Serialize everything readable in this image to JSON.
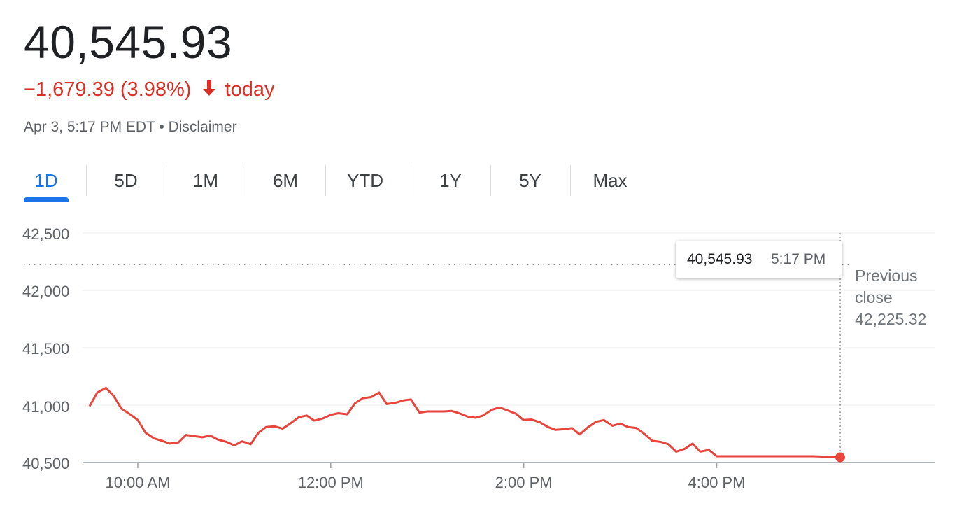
{
  "header": {
    "price": "40,545.93",
    "change_value": "−1,679.39",
    "change_percent": "(3.98%)",
    "change_period": "today",
    "timestamp": "Apr 3, 5:17 PM EDT",
    "separator": "•",
    "disclaimer": "Disclaimer"
  },
  "tabs": [
    {
      "label": "1D",
      "active": true
    },
    {
      "label": "5D"
    },
    {
      "label": "1M"
    },
    {
      "label": "6M"
    },
    {
      "label": "YTD"
    },
    {
      "label": "1Y"
    },
    {
      "label": "5Y"
    },
    {
      "label": "Max"
    }
  ],
  "tooltip": {
    "value": "40,545.93",
    "time": "5:17 PM"
  },
  "previous_close": {
    "line1": "Previous",
    "line2": "close",
    "value_text": "42,225.32"
  },
  "colors": {
    "line": "#e8453c",
    "accent": "#1a73e8",
    "negative": "#d93025"
  },
  "chart_data": {
    "type": "line",
    "yticks": [
      "42,500",
      "42,000",
      "41,500",
      "41,000",
      "40,500"
    ],
    "ytick_values": [
      42500,
      42000,
      41500,
      41000,
      40500
    ],
    "xticks": [
      {
        "label": "10:00 AM",
        "value": 10.0
      },
      {
        "label": "12:00 PM",
        "value": 12.0
      },
      {
        "label": "2:00 PM",
        "value": 14.0
      },
      {
        "label": "4:00 PM",
        "value": 16.0
      }
    ],
    "xlim": [
      9.5,
      18.0
    ],
    "ylim": [
      40500,
      42500
    ],
    "previous_close": 42225.32,
    "last_value": 40545.93,
    "series": [
      {
        "x": [
          9.5,
          9.58,
          9.67,
          9.75,
          9.83,
          9.92,
          10.0,
          10.08,
          10.17,
          10.25,
          10.33,
          10.42,
          10.5,
          10.58,
          10.67,
          10.75,
          10.83,
          10.92,
          11.0,
          11.08,
          11.17,
          11.25,
          11.33,
          11.42,
          11.5,
          11.58,
          11.67,
          11.75,
          11.83,
          11.92,
          12.0,
          12.08,
          12.17,
          12.25,
          12.33,
          12.42,
          12.5,
          12.58,
          12.67,
          12.75,
          12.83,
          12.92,
          13.0,
          13.08,
          13.17,
          13.25,
          13.33,
          13.42,
          13.5,
          13.58,
          13.67,
          13.75,
          13.83,
          13.92,
          14.0,
          14.08,
          14.17,
          14.25,
          14.33,
          14.42,
          14.5,
          14.58,
          14.67,
          14.75,
          14.83,
          14.92,
          15.0,
          15.08,
          15.17,
          15.25,
          15.33,
          15.42,
          15.5,
          15.58,
          15.67,
          15.75,
          15.83,
          15.92,
          16.0,
          16.5,
          17.0,
          17.28
        ],
        "y": [
          40990,
          41110,
          41150,
          41080,
          40970,
          40920,
          40870,
          40760,
          40710,
          40690,
          40665,
          40675,
          40740,
          40730,
          40720,
          40735,
          40700,
          40680,
          40650,
          40685,
          40660,
          40760,
          40810,
          40815,
          40795,
          40840,
          40895,
          40910,
          40865,
          40885,
          40915,
          40930,
          40920,
          41015,
          41060,
          41070,
          41110,
          41010,
          41020,
          41040,
          41050,
          40935,
          40945,
          40945,
          40945,
          40950,
          40930,
          40900,
          40890,
          40910,
          40960,
          40980,
          40955,
          40925,
          40870,
          40875,
          40850,
          40810,
          40785,
          40790,
          40800,
          40745,
          40810,
          40855,
          40870,
          40820,
          40840,
          40810,
          40800,
          40750,
          40690,
          40680,
          40660,
          40595,
          40620,
          40665,
          40595,
          40610,
          40555,
          40555,
          40555,
          40545.93
        ]
      }
    ]
  }
}
